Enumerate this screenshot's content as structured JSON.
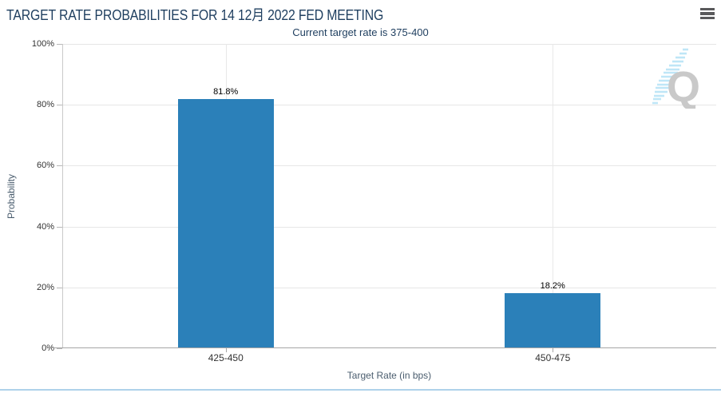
{
  "chart_data": {
    "type": "bar",
    "title": "TARGET RATE PROBABILITIES FOR 14 12月 2022 FED MEETING",
    "subtitle": "Current target rate is 375-400",
    "categories": [
      "425-450",
      "450-475"
    ],
    "values": [
      81.8,
      18.2
    ],
    "data_labels": [
      "81.8%",
      "18.2%"
    ],
    "xlabel": "Target Rate (in bps)",
    "ylabel": "Probability",
    "ylim": [
      0,
      100
    ],
    "ytick_labels": [
      "100%",
      "80%",
      "60%",
      "40%",
      "20%",
      "0%"
    ],
    "grid": true,
    "legend": false,
    "bar_color": "#2b80b9"
  },
  "icons": {
    "menu": "hamburger-menu",
    "watermark": "q-logo"
  },
  "watermark_letter": "Q",
  "colors": {
    "title_text": "#1e3e5f",
    "bar": "#2b80b9",
    "gridline": "#e6e6e6",
    "axis_line": "#a6a6a6",
    "bottom_accent": "#aed2ea",
    "watermark_gray": "#c9c9c9",
    "watermark_blue": "#bfe6f7"
  }
}
